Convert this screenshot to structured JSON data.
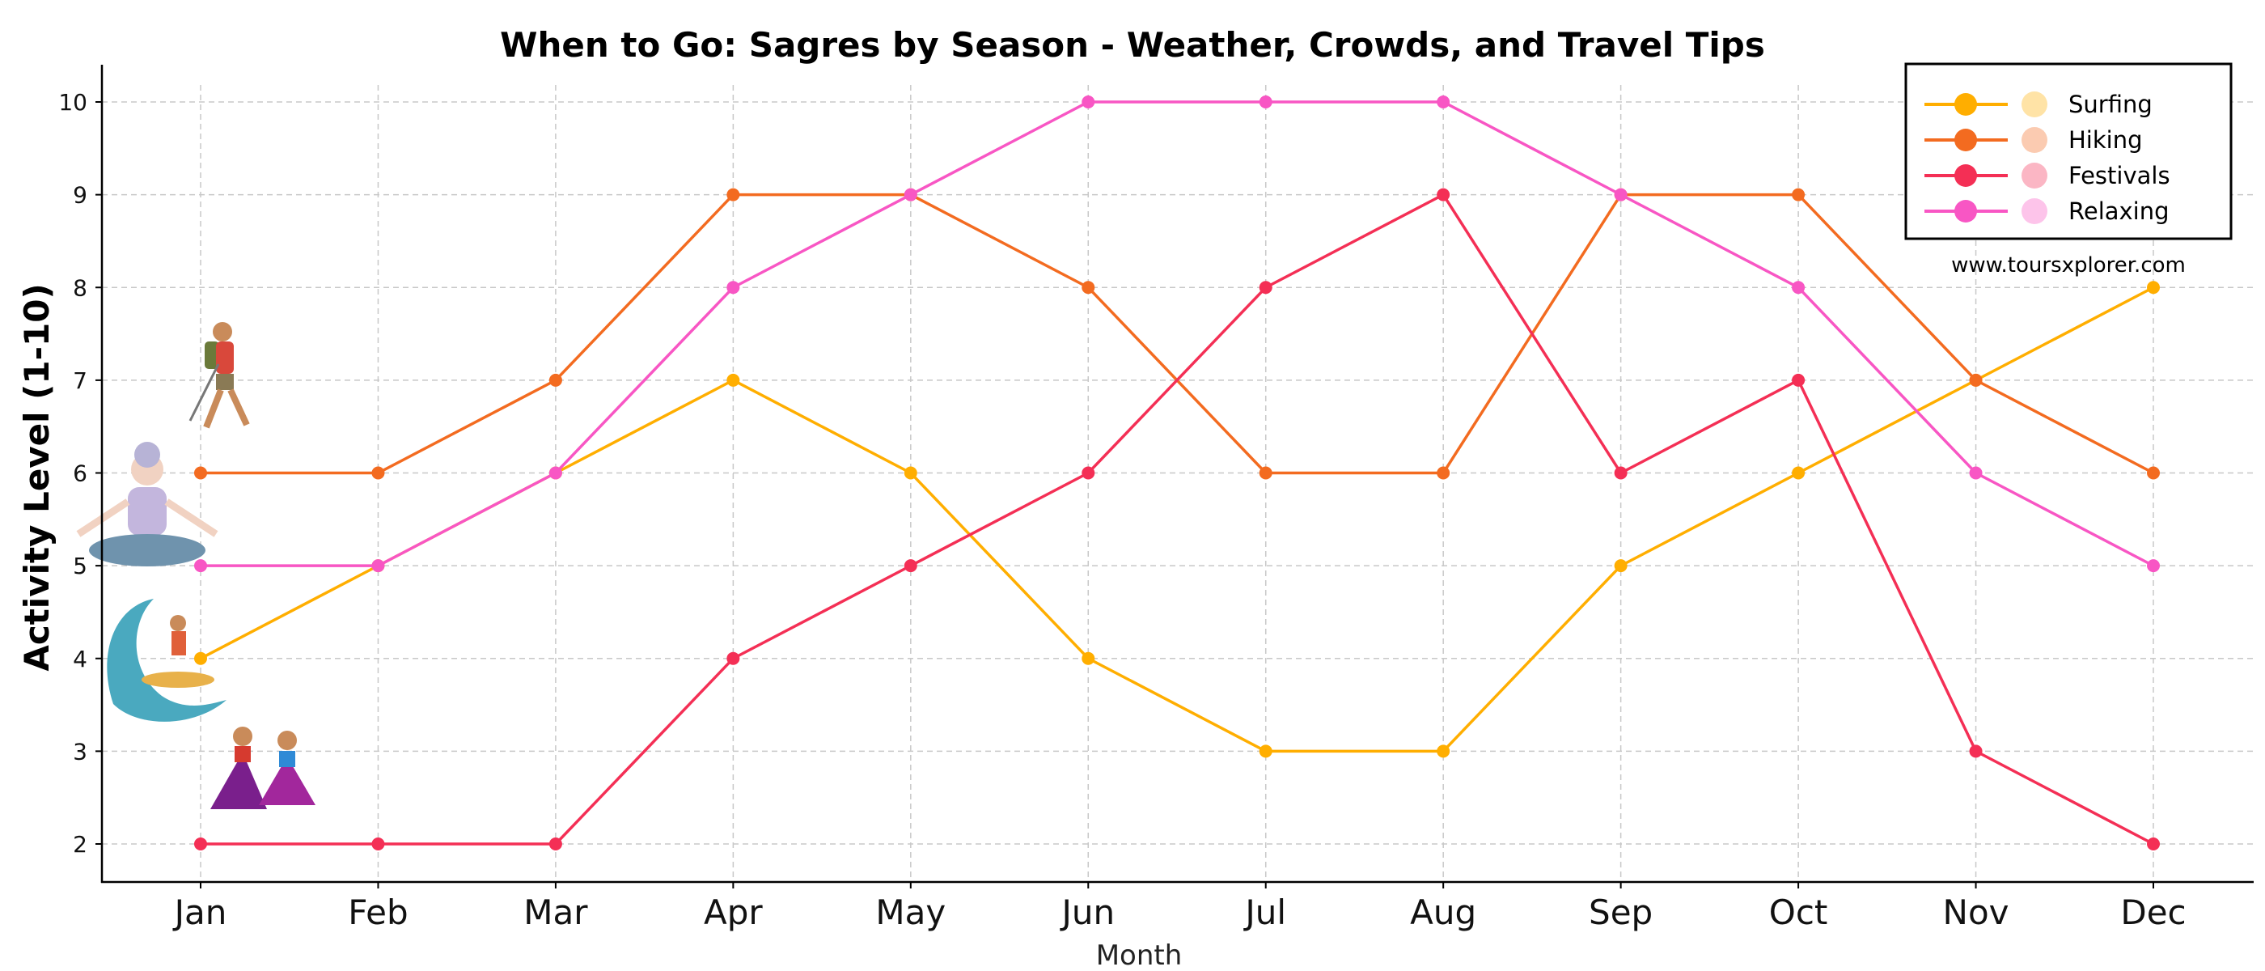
{
  "chart_data": {
    "type": "line",
    "title": "When to Go: Sagres by Season - Weather, Crowds, and Travel Tips",
    "xlabel": "Month",
    "ylabel": "Activity Level (1-10)",
    "categories": [
      "Jan",
      "Feb",
      "Mar",
      "Apr",
      "May",
      "Jun",
      "Jul",
      "Aug",
      "Sep",
      "Oct",
      "Nov",
      "Dec"
    ],
    "yticks": [
      "2",
      "3",
      "4",
      "5",
      "6",
      "7",
      "8",
      "9",
      "10"
    ],
    "ylim": [
      1.8,
      10.4
    ],
    "grid": true,
    "legend_position": "top-right",
    "series": [
      {
        "name": "Surfing",
        "color": "#FFAE00",
        "icon": "surfer-icon",
        "values": [
          4,
          5,
          6,
          7,
          6,
          4,
          3,
          3,
          5,
          6,
          7,
          8
        ]
      },
      {
        "name": "Hiking",
        "color": "#F36B20",
        "icon": "hiker-icon",
        "values": [
          6,
          6,
          7,
          9,
          9,
          8,
          6,
          6,
          9,
          9,
          7,
          6
        ]
      },
      {
        "name": "Festivals",
        "color": "#F42F55",
        "icon": "dancers-icon",
        "values": [
          2,
          2,
          2,
          4,
          5,
          6,
          8,
          9,
          6,
          7,
          3,
          2
        ]
      },
      {
        "name": "Relaxing",
        "color": "#F856C4",
        "icon": "meditation-icon",
        "values": [
          5,
          5,
          6,
          8,
          9,
          10,
          10,
          10,
          9,
          8,
          6,
          5
        ]
      }
    ],
    "watermark": "www.toursxplorer.com"
  }
}
